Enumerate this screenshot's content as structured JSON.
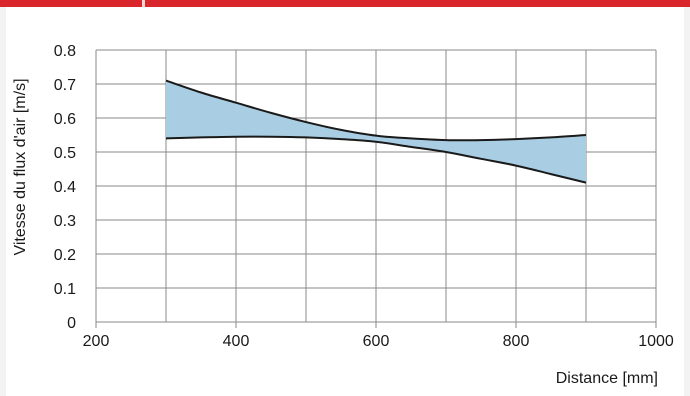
{
  "colors": {
    "accent_bar": "#d9252c",
    "band_fill": "#a9cee3",
    "curve": "#1a1a1a",
    "grid": "#8a8a8a"
  },
  "chart_data": {
    "type": "area",
    "title": "",
    "xlabel": "Distance [mm]",
    "ylabel": "Vitesse du flux d'air [m/s]",
    "xlim": [
      200,
      1000
    ],
    "ylim": [
      0,
      0.8
    ],
    "xticks": [
      200,
      400,
      600,
      800,
      1000
    ],
    "yticks": [
      0,
      0.1,
      0.2,
      0.3,
      0.4,
      0.5,
      0.6,
      0.7,
      0.8
    ],
    "xtick_labels": [
      "200",
      "400",
      "600",
      "800",
      "1000"
    ],
    "ytick_labels": [
      "0",
      "0.1",
      "0.2",
      "0.3",
      "0.4",
      "0.5",
      "0.6",
      "0.7",
      "0.8"
    ],
    "grid": true,
    "series": [
      {
        "x": [
          300,
          350,
          400,
          450,
          500,
          550,
          600,
          650,
          700,
          750,
          800,
          850,
          900
        ],
        "values": [
          0.71,
          0.675,
          0.645,
          0.615,
          0.588,
          0.565,
          0.548,
          0.54,
          0.535,
          0.535,
          0.538,
          0.543,
          0.55
        ]
      },
      {
        "x": [
          300,
          350,
          400,
          450,
          500,
          550,
          600,
          650,
          700,
          750,
          800,
          850,
          900
        ],
        "values": [
          0.54,
          0.543,
          0.545,
          0.545,
          0.543,
          0.538,
          0.53,
          0.515,
          0.5,
          0.48,
          0.46,
          0.435,
          0.41
        ]
      }
    ]
  }
}
